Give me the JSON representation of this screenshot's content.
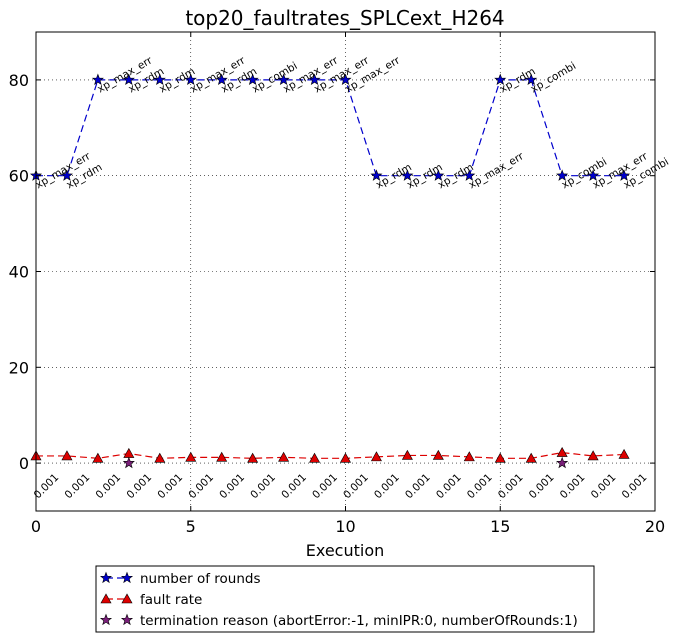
{
  "chart_data": {
    "type": "line",
    "title": "top20_faultrates_SPLCext_H264",
    "xlabel": "Execution",
    "ylabel": "",
    "xlim": [
      0,
      20
    ],
    "ylim": [
      -10,
      90
    ],
    "xticks": [
      0,
      5,
      10,
      15,
      20
    ],
    "yticks": [
      0,
      20,
      40,
      60,
      80
    ],
    "grid": true,
    "legend_position": "below",
    "series": [
      {
        "name": "number of rounds",
        "color": "#0000cc",
        "marker": "star",
        "line": "dashed",
        "x": [
          0,
          1,
          2,
          3,
          4,
          5,
          6,
          7,
          8,
          9,
          10,
          11,
          12,
          13,
          14,
          15,
          16,
          17,
          18,
          19
        ],
        "values": [
          60,
          60,
          80,
          80,
          80,
          80,
          80,
          80,
          80,
          80,
          80,
          60,
          60,
          60,
          60,
          80,
          80,
          60,
          60,
          60
        ]
      },
      {
        "name": "fault rate",
        "color": "#dd0000",
        "marker": "triangle",
        "line": "dashed",
        "x": [
          0,
          1,
          2,
          3,
          4,
          5,
          6,
          7,
          8,
          9,
          10,
          11,
          12,
          13,
          14,
          15,
          16,
          17,
          18,
          19
        ],
        "values": [
          1.5,
          1.5,
          1.0,
          2.0,
          1.0,
          1.2,
          1.2,
          1.0,
          1.2,
          1.0,
          1.0,
          1.3,
          1.6,
          1.6,
          1.3,
          1.0,
          1.0,
          2.2,
          1.5,
          1.8
        ]
      },
      {
        "name": "termination reason (abortError:-1, minIPR:0, numberOfRounds:1)",
        "color": "#7a1f7a",
        "marker": "star",
        "line": "none",
        "x": [
          3,
          17
        ],
        "values": [
          0,
          0
        ]
      }
    ],
    "point_labels": [
      "xp_max_err",
      "xp_rdm",
      "xp_max_err",
      "xp_rdm",
      "xp_rdm",
      "xp_max_err",
      "xp_rdm",
      "xp_combi",
      "xp_max_err",
      "xp_max_err",
      "xp_max_err",
      "xp_rdm",
      "xp_rdm",
      "xp_rdm",
      "xp_max_err",
      "xp_rdm",
      "xp_combi",
      "xp_combi",
      "xp_max_err",
      "xp_combi"
    ],
    "rate_labels": [
      "0.001",
      "0.001",
      "0.001",
      "0.001",
      "0.001",
      "0.001",
      "0.001",
      "0.001",
      "0.001",
      "0.001",
      "0.001",
      "0.001",
      "0.001",
      "0.001",
      "0.001",
      "0.001",
      "0.001",
      "0.001",
      "0.001",
      "0.001"
    ]
  }
}
